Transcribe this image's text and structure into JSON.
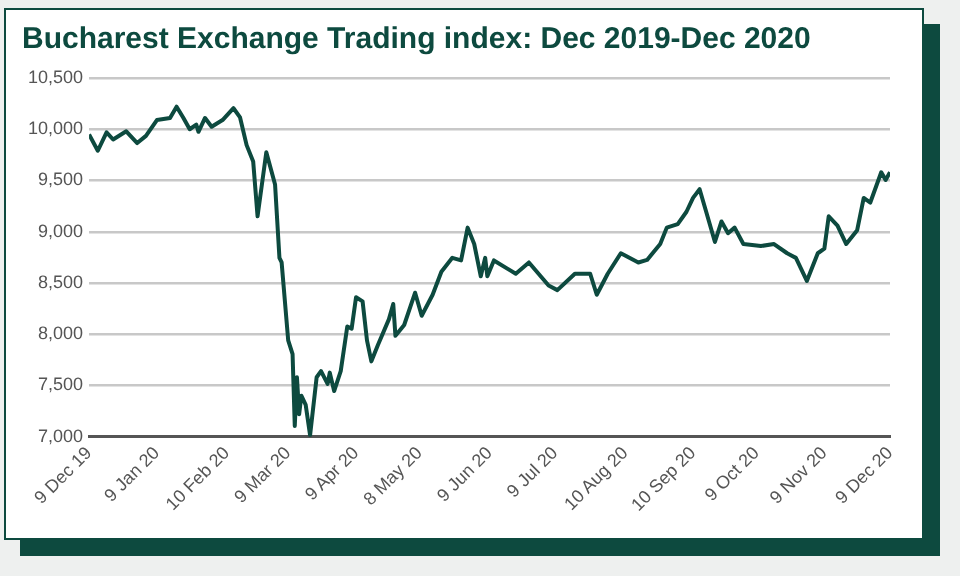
{
  "chart_data": {
    "type": "line",
    "title": "Bucharest Exchange Trading index: Dec 2019-Dec 2020",
    "x": [
      "2019-12-09",
      "2019-12-13",
      "2019-12-17",
      "2019-12-20",
      "2019-12-26",
      "2019-12-31",
      "2020-01-04",
      "2020-01-09",
      "2020-01-15",
      "2020-01-18",
      "2020-01-21",
      "2020-01-24",
      "2020-01-27",
      "2020-01-28",
      "2020-01-31",
      "2020-02-03",
      "2020-02-08",
      "2020-02-13",
      "2020-02-16",
      "2020-02-19",
      "2020-02-22",
      "2020-02-24",
      "2020-02-28",
      "2020-03-03",
      "2020-03-05",
      "2020-03-06",
      "2020-03-09",
      "2020-03-11",
      "2020-03-12",
      "2020-03-13",
      "2020-03-14",
      "2020-03-15",
      "2020-03-17",
      "2020-03-19",
      "2020-03-22",
      "2020-03-24",
      "2020-03-27",
      "2020-03-28",
      "2020-03-30",
      "2020-04-02",
      "2020-04-05",
      "2020-04-07",
      "2020-04-09",
      "2020-04-12",
      "2020-04-14",
      "2020-04-16",
      "2020-04-19",
      "2020-04-24",
      "2020-04-26",
      "2020-04-27",
      "2020-05-01",
      "2020-05-06",
      "2020-05-09",
      "2020-05-14",
      "2020-05-18",
      "2020-05-23",
      "2020-05-27",
      "2020-05-30",
      "2020-06-02",
      "2020-06-05",
      "2020-06-07",
      "2020-06-08",
      "2020-06-11",
      "2020-06-21",
      "2020-06-27",
      "2020-07-06",
      "2020-07-10",
      "2020-07-18",
      "2020-07-25",
      "2020-07-28",
      "2020-08-02",
      "2020-08-08",
      "2020-08-16",
      "2020-08-20",
      "2020-08-26",
      "2020-08-29",
      "2020-09-03",
      "2020-09-07",
      "2020-09-10",
      "2020-09-13",
      "2020-09-16",
      "2020-09-20",
      "2020-09-23",
      "2020-09-26",
      "2020-09-29",
      "2020-10-03",
      "2020-10-11",
      "2020-10-17",
      "2020-10-23",
      "2020-10-27",
      "2020-11-01",
      "2020-11-06",
      "2020-11-09",
      "2020-11-11",
      "2020-11-15",
      "2020-11-19",
      "2020-11-24",
      "2020-11-27",
      "2020-11-30",
      "2020-12-05",
      "2020-12-07",
      "2020-12-09"
    ],
    "series": [
      {
        "color": "#0d4a3f",
        "values": [
          9950,
          9790,
          9970,
          9900,
          9980,
          9865,
          9935,
          10090,
          10110,
          10220,
          10115,
          10000,
          10045,
          9975,
          10110,
          10025,
          10090,
          10205,
          10115,
          9845,
          9685,
          9150,
          9775,
          9460,
          8745,
          8700,
          7940,
          7805,
          7105,
          7580,
          7220,
          7400,
          7310,
          7015,
          7580,
          7640,
          7515,
          7625,
          7445,
          7640,
          8075,
          8055,
          8360,
          8320,
          7940,
          7735,
          7895,
          8145,
          8295,
          7985,
          8090,
          8405,
          8180,
          8385,
          8610,
          8745,
          8720,
          9040,
          8880,
          8565,
          8745,
          8565,
          8720,
          8590,
          8700,
          8475,
          8430,
          8590,
          8590,
          8385,
          8590,
          8790,
          8700,
          8725,
          8880,
          9040,
          9075,
          9195,
          9330,
          9415,
          9195,
          8900,
          9100,
          8985,
          9040,
          8880,
          8860,
          8880,
          8790,
          8745,
          8520,
          8790,
          8835,
          9150,
          9060,
          8880,
          9015,
          9330,
          9285,
          9580,
          9505,
          9580
        ]
      }
    ],
    "xlim": [
      "2019-12-09",
      "2020-12-09"
    ],
    "xticks": [
      {
        "value": "2019-12-09",
        "label": "9 Dec 19"
      },
      {
        "value": "2020-01-09",
        "label": "9 Jan 20"
      },
      {
        "value": "2020-02-10",
        "label": "10 Feb 20"
      },
      {
        "value": "2020-03-09",
        "label": "9 Mar 20"
      },
      {
        "value": "2020-04-09",
        "label": "9 Apr 20"
      },
      {
        "value": "2020-05-08",
        "label": "8 May 20"
      },
      {
        "value": "2020-06-09",
        "label": "9 Jun 20"
      },
      {
        "value": "2020-07-09",
        "label": "9 Jul 20"
      },
      {
        "value": "2020-08-10",
        "label": "10 Aug 20"
      },
      {
        "value": "2020-09-10",
        "label": "10 Sep 20"
      },
      {
        "value": "2020-10-09",
        "label": "9 Oct 20"
      },
      {
        "value": "2020-11-09",
        "label": "9 Nov 20"
      },
      {
        "value": "2020-12-09",
        "label": "9 Dec 20"
      }
    ],
    "ylim": [
      7000,
      10500
    ],
    "yticks": [
      {
        "value": 7000,
        "label": "7,000"
      },
      {
        "value": 7500,
        "label": "7,500"
      },
      {
        "value": 8000,
        "label": "8,000"
      },
      {
        "value": 8500,
        "label": "8,500"
      },
      {
        "value": 9000,
        "label": "9,000"
      },
      {
        "value": 9500,
        "label": "9,500"
      },
      {
        "value": 10000,
        "label": "10,000"
      },
      {
        "value": 10500,
        "label": "10,500"
      }
    ],
    "grid": "y",
    "legend": false,
    "marker": "none",
    "line_style": "solid"
  }
}
